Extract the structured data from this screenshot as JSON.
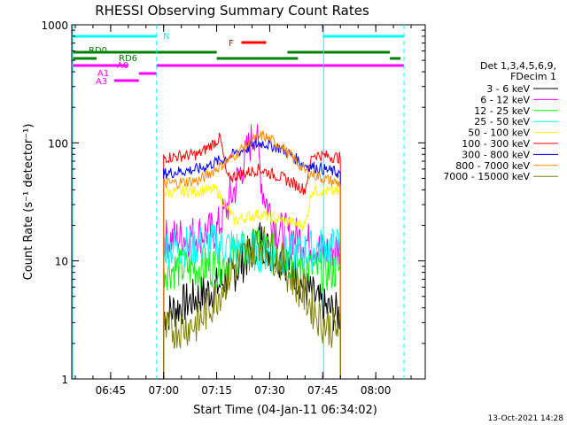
{
  "chart_data": {
    "type": "line",
    "title": "RHESSI Observing Summary Count Rates",
    "xlabel": "Start Time (04-Jan-11 06:34:02)",
    "ylabel": "Count Rate (s⁻¹ detector⁻¹)",
    "y_scale": "log",
    "ylim": [
      1,
      1000
    ],
    "xlim": [
      "06:34",
      "08:14"
    ],
    "x_ticks": [
      "06:45",
      "07:00",
      "07:15",
      "07:30",
      "07:45",
      "08:00"
    ],
    "y_ticks": [
      "1",
      "10",
      "100",
      "1000"
    ],
    "legend_position": "right",
    "legend_header": [
      "Det 1,3,4,5,6,9,",
      "FDecim 1"
    ],
    "timestamp": "13-Oct-2021 14:28",
    "series": [
      {
        "name": "3 - 6 keV",
        "color": "#000000",
        "points": [
          [
            "07:00",
            3.5
          ],
          [
            "07:15",
            6
          ],
          [
            "07:20",
            8
          ],
          [
            "07:25",
            12
          ],
          [
            "07:27",
            16
          ],
          [
            "07:30",
            12
          ],
          [
            "07:35",
            10
          ],
          [
            "07:40",
            6
          ],
          [
            "07:45",
            4
          ],
          [
            "07:50",
            3.5
          ]
        ]
      },
      {
        "name": "6 - 12 keV",
        "color": "#ff00ff",
        "points": [
          [
            "07:00",
            15
          ],
          [
            "07:15",
            18
          ],
          [
            "07:20",
            40
          ],
          [
            "07:24",
            90
          ],
          [
            "07:26",
            130
          ],
          [
            "07:28",
            40
          ],
          [
            "07:32",
            18
          ],
          [
            "07:40",
            15
          ],
          [
            "07:45",
            12
          ],
          [
            "07:50",
            13
          ]
        ]
      },
      {
        "name": "12 - 25 keV",
        "color": "#00ff00",
        "points": [
          [
            "07:00",
            8.5
          ],
          [
            "07:15",
            9
          ],
          [
            "07:20",
            11
          ],
          [
            "07:27",
            13
          ],
          [
            "07:33",
            11
          ],
          [
            "07:40",
            9
          ],
          [
            "07:45",
            8
          ],
          [
            "07:50",
            8.5
          ]
        ]
      },
      {
        "name": "25 - 50 keV",
        "color": "#00ffff",
        "points": [
          [
            "07:00",
            13
          ],
          [
            "07:15",
            14
          ],
          [
            "07:20",
            13
          ],
          [
            "07:27",
            12
          ],
          [
            "07:35",
            11
          ],
          [
            "07:40",
            12
          ],
          [
            "07:45",
            13
          ],
          [
            "07:50",
            13
          ]
        ]
      },
      {
        "name": "50 - 100 keV",
        "color": "#ffff00",
        "points": [
          [
            "07:00",
            38
          ],
          [
            "07:15",
            40
          ],
          [
            "07:20",
            22
          ],
          [
            "07:27",
            25
          ],
          [
            "07:33",
            22
          ],
          [
            "07:40",
            20
          ],
          [
            "07:42",
            40
          ],
          [
            "07:50",
            38
          ]
        ]
      },
      {
        "name": "100 - 300 keV",
        "color": "#ff0000",
        "points": [
          [
            "07:00",
            75
          ],
          [
            "07:10",
            80
          ],
          [
            "07:16",
            110
          ],
          [
            "07:18",
            50
          ],
          [
            "07:27",
            60
          ],
          [
            "07:34",
            50
          ],
          [
            "07:40",
            40
          ],
          [
            "07:42",
            80
          ],
          [
            "07:50",
            75
          ]
        ]
      },
      {
        "name": "300 - 800 keV",
        "color": "#0000ff",
        "points": [
          [
            "07:00",
            55
          ],
          [
            "07:10",
            60
          ],
          [
            "07:18",
            75
          ],
          [
            "07:25",
            95
          ],
          [
            "07:28",
            100
          ],
          [
            "07:33",
            90
          ],
          [
            "07:40",
            65
          ],
          [
            "07:45",
            60
          ],
          [
            "07:50",
            55
          ]
        ]
      },
      {
        "name": "800 - 7000 keV",
        "color": "#ff8c00",
        "points": [
          [
            "07:00",
            45
          ],
          [
            "07:10",
            48
          ],
          [
            "07:18",
            70
          ],
          [
            "07:25",
            105
          ],
          [
            "07:28",
            115
          ],
          [
            "07:33",
            95
          ],
          [
            "07:40",
            58
          ],
          [
            "07:45",
            50
          ],
          [
            "07:50",
            45
          ]
        ]
      },
      {
        "name": "7000 - 15000 keV",
        "color": "#808000",
        "points": [
          [
            "07:00",
            2.5
          ],
          [
            "07:10",
            3
          ],
          [
            "07:15",
            5
          ],
          [
            "07:20",
            9
          ],
          [
            "07:27",
            15
          ],
          [
            "07:33",
            10
          ],
          [
            "07:40",
            5
          ],
          [
            "07:45",
            3
          ],
          [
            "07:50",
            2.5
          ]
        ]
      }
    ],
    "annotations": [
      {
        "label": "N",
        "color": "#00ffff",
        "segments": [
          [
            "06:34",
            "06:58"
          ],
          [
            "07:45",
            "08:08"
          ]
        ]
      },
      {
        "label": "F",
        "color": "#ff0000",
        "segments": [
          [
            "07:22",
            "07:29"
          ]
        ]
      },
      {
        "label": "RD0",
        "color": "#008000",
        "segments": [
          [
            "06:34",
            "07:15"
          ],
          [
            "07:35",
            "08:04"
          ]
        ]
      },
      {
        "label": "RD6",
        "color": "#008000",
        "segments": [
          [
            "06:34",
            "06:41"
          ],
          [
            "07:15",
            "07:38"
          ],
          [
            "08:04",
            "08:07"
          ]
        ]
      },
      {
        "label": "A0",
        "color": "#ff00ff",
        "segments": [
          [
            "06:34",
            "06:50"
          ],
          [
            "06:58",
            "08:08"
          ]
        ]
      },
      {
        "label": "A1",
        "color": "#ff00ff",
        "segments": [
          [
            "06:53",
            "06:58"
          ]
        ]
      },
      {
        "label": "A3",
        "color": "#ff00ff",
        "segments": [
          [
            "06:46",
            "06:53"
          ]
        ]
      }
    ]
  }
}
